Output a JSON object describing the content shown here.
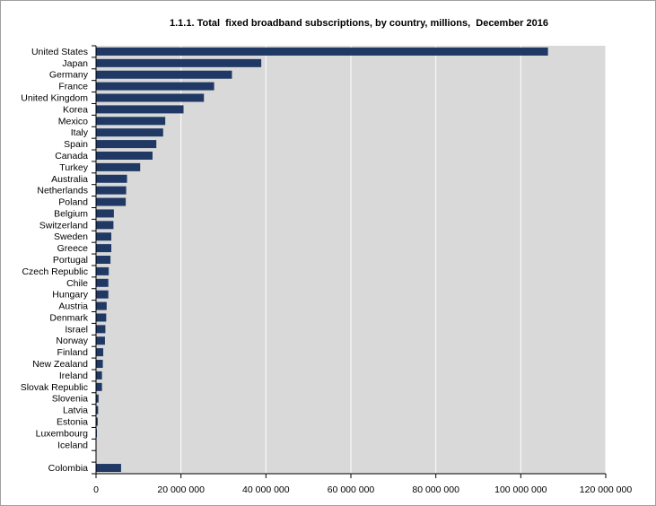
{
  "chart_data": {
    "type": "bar",
    "orientation": "horizontal",
    "title": "1.1.1. Total  fixed broadband subscriptions, by country, millions,  December 2016",
    "xlabel": "",
    "ylabel": "",
    "xlim": [
      0,
      120000000
    ],
    "x_ticks": [
      0,
      20000000,
      40000000,
      60000000,
      80000000,
      100000000,
      120000000
    ],
    "x_tick_labels": [
      "0",
      "20 000 000",
      "40 000 000",
      "60 000 000",
      "80 000 000",
      "100 000 000",
      "120 000 000"
    ],
    "grid": true,
    "bar_color": "#1f3864",
    "plot_background": "#d9d9d9",
    "categories": [
      "United States",
      "Japan",
      "Germany",
      "France",
      "United Kingdom",
      "Korea",
      "Mexico",
      "Italy",
      "Spain",
      "Canada",
      "Turkey",
      "Australia",
      "Netherlands",
      "Poland",
      "Belgium",
      "Switzerland",
      "Sweden",
      "Greece",
      "Portugal",
      "Czech Republic",
      "Chile",
      "Hungary",
      "Austria",
      "Denmark",
      "Israel",
      "Norway",
      "Finland",
      "New Zealand",
      "Ireland",
      "Slovak Republic",
      "Slovenia",
      "Latvia",
      "Estonia",
      "Luxembourg",
      "Iceland",
      "",
      "Colombia"
    ],
    "values": [
      106400000,
      38900000,
      32000000,
      27800000,
      25400000,
      20600000,
      16300000,
      15800000,
      14200000,
      13300000,
      10400000,
      7300000,
      7100000,
      7000000,
      4200000,
      4100000,
      3600000,
      3600000,
      3400000,
      3000000,
      2900000,
      2900000,
      2500000,
      2400000,
      2200000,
      2100000,
      1700000,
      1600000,
      1400000,
      1400000,
      600000,
      500000,
      400000,
      200000,
      100000,
      null,
      5900000
    ]
  }
}
